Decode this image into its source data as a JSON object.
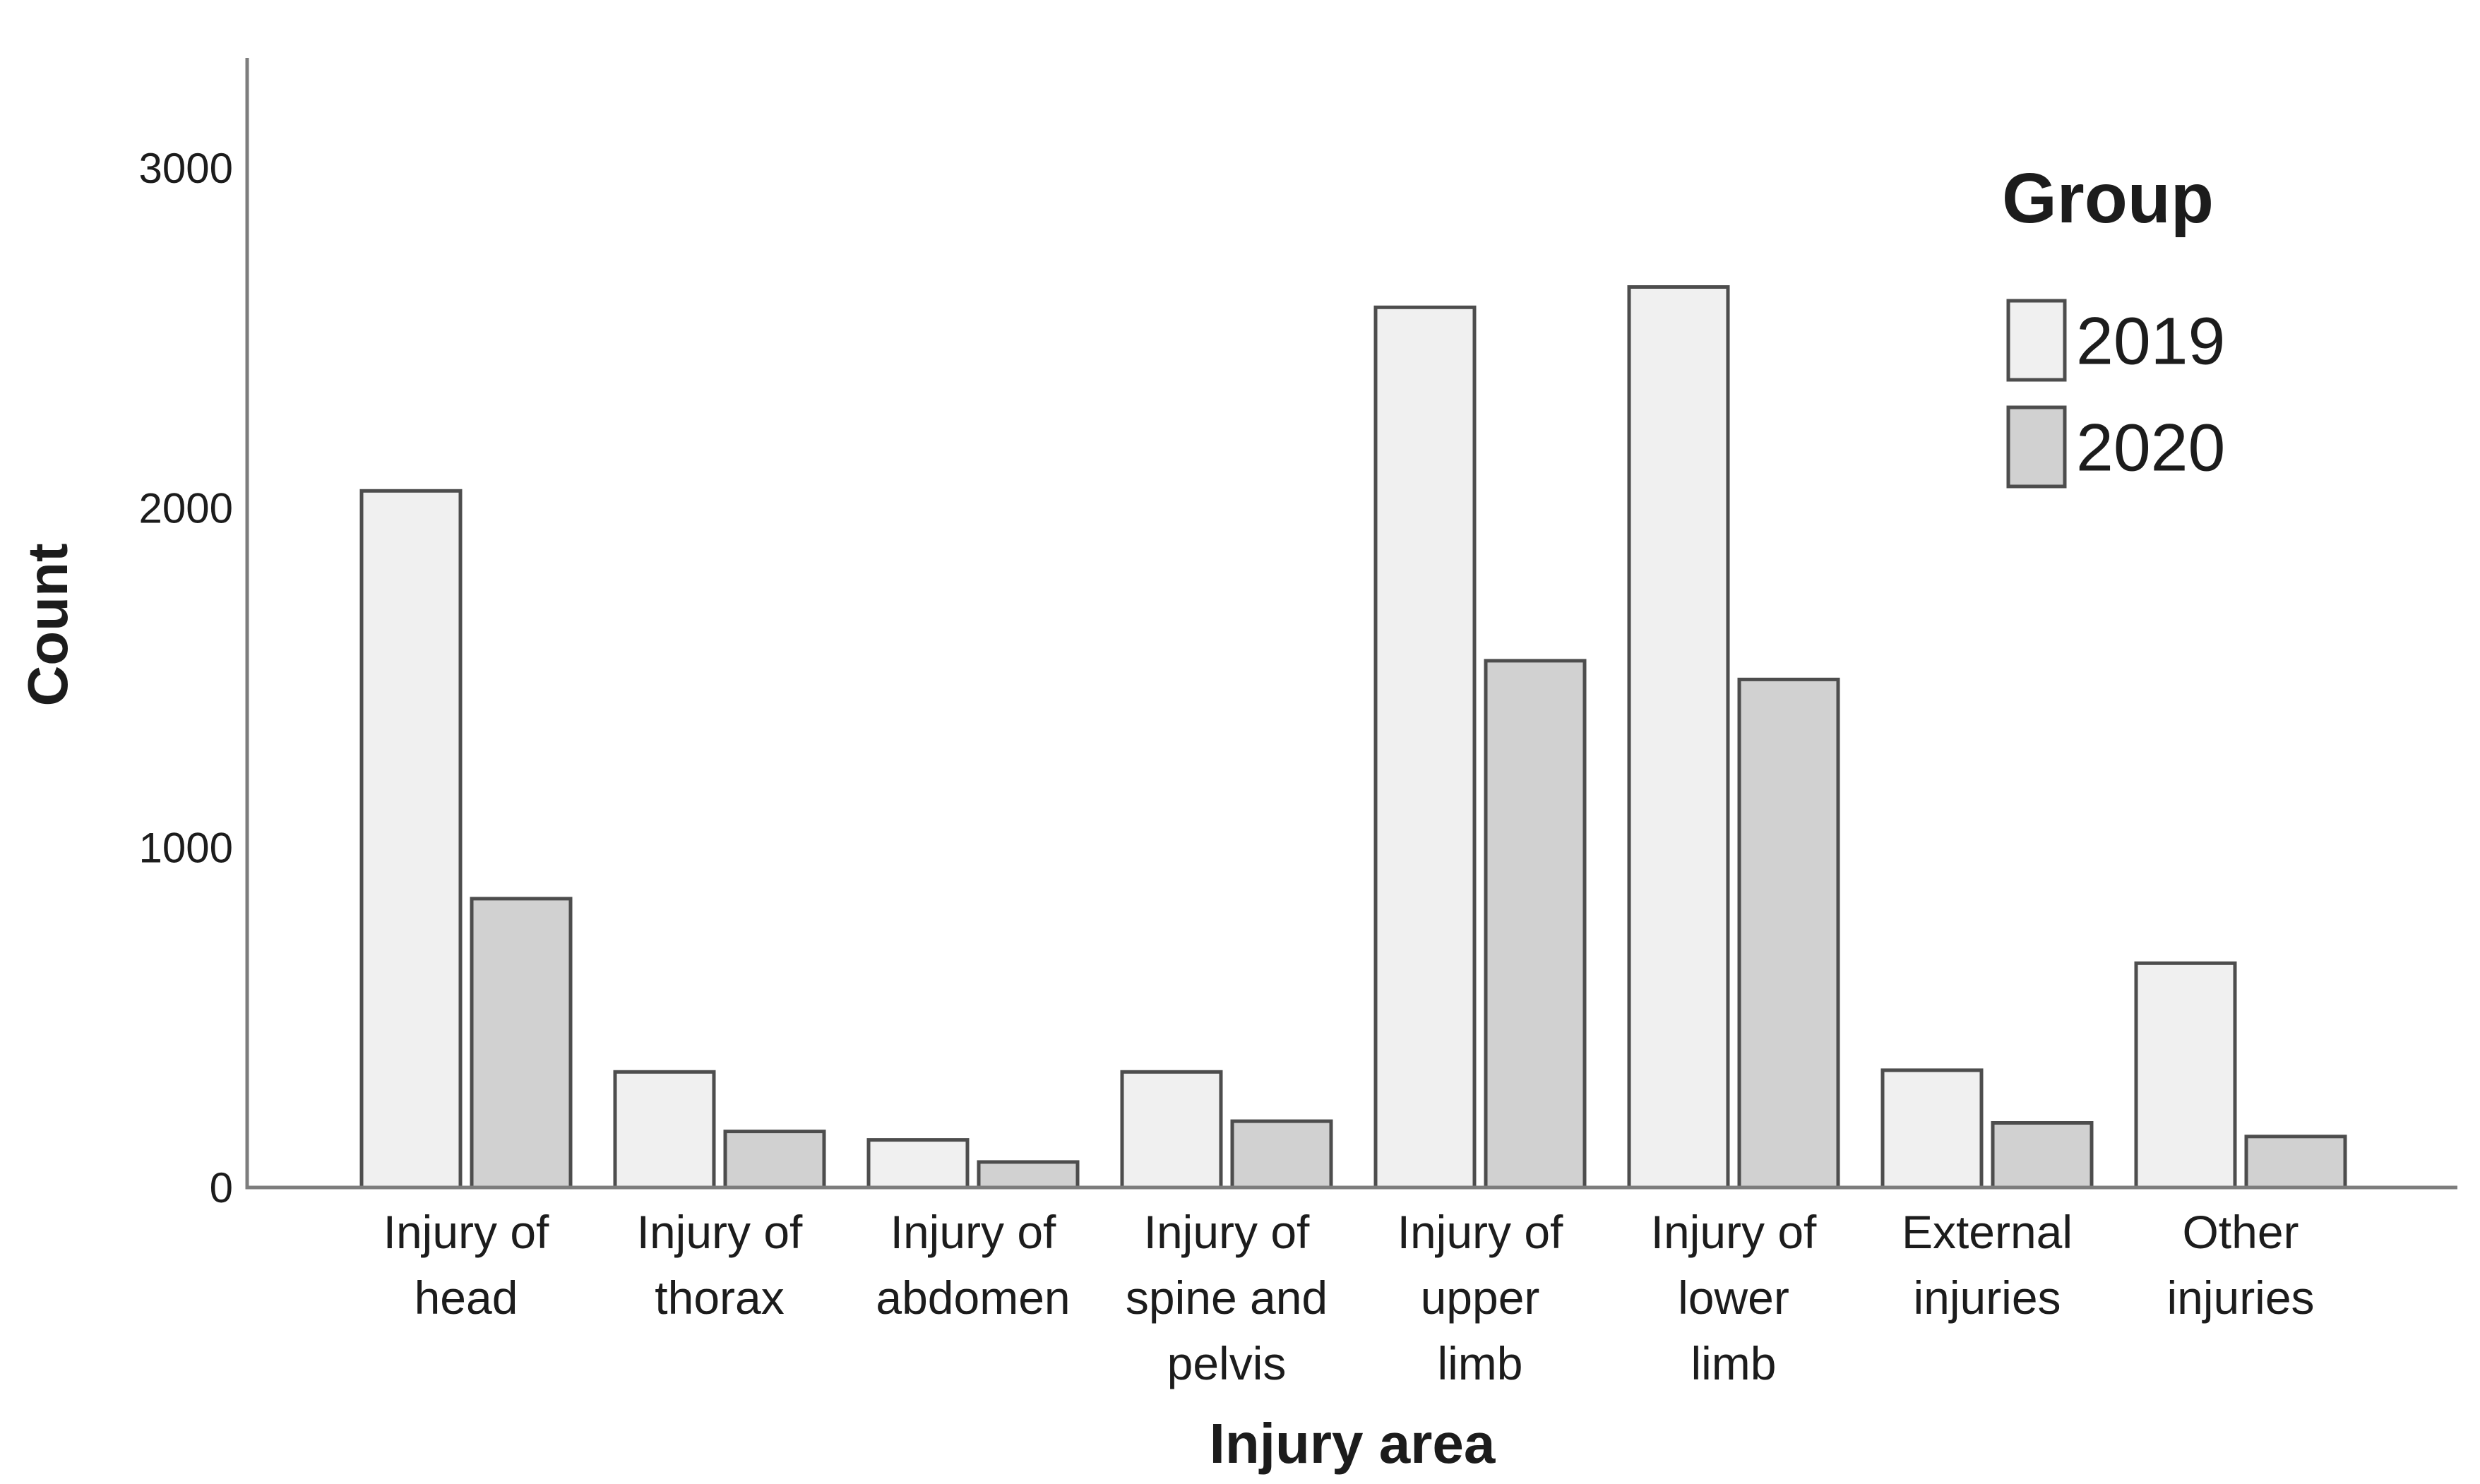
{
  "chart_data": {
    "type": "bar",
    "title": "",
    "xlabel": "Injury area",
    "ylabel": "Count",
    "legend": {
      "title": "Group",
      "position": "top-right"
    },
    "categories": [
      "Injury of head",
      "Injury of thorax",
      "Injury of abdomen",
      "Injury of spine and pelvis",
      "Injury of upper limb",
      "Injury of lower limb",
      "External injuries",
      "Other injuries"
    ],
    "category_label_lines": [
      [
        "Injury of",
        "head"
      ],
      [
        "Injury of",
        "thorax"
      ],
      [
        "Injury of",
        "abdomen"
      ],
      [
        "Injury of",
        "spine and",
        "pelvis"
      ],
      [
        "Injury of",
        "upper",
        "limb"
      ],
      [
        "Injury of",
        "lower",
        "limb"
      ],
      [
        "External",
        "injuries"
      ],
      [
        "Other",
        "injuries"
      ]
    ],
    "series": [
      {
        "name": "2019",
        "color": "#f0f0f0",
        "values": [
          2050,
          340,
          140,
          340,
          2590,
          2650,
          345,
          660
        ]
      },
      {
        "name": "2020",
        "color": "#d1d1d1",
        "values": [
          850,
          165,
          75,
          195,
          1550,
          1495,
          190,
          150
        ]
      }
    ],
    "yticks": [
      0,
      1000,
      2000,
      3000
    ],
    "ylim": [
      0,
      3325
    ],
    "grid": false,
    "colors": {
      "bar_stroke": "#4d4d4d",
      "axis": "#7d7d7d",
      "text": "#1c1c1c",
      "background": "#ffffff"
    }
  }
}
